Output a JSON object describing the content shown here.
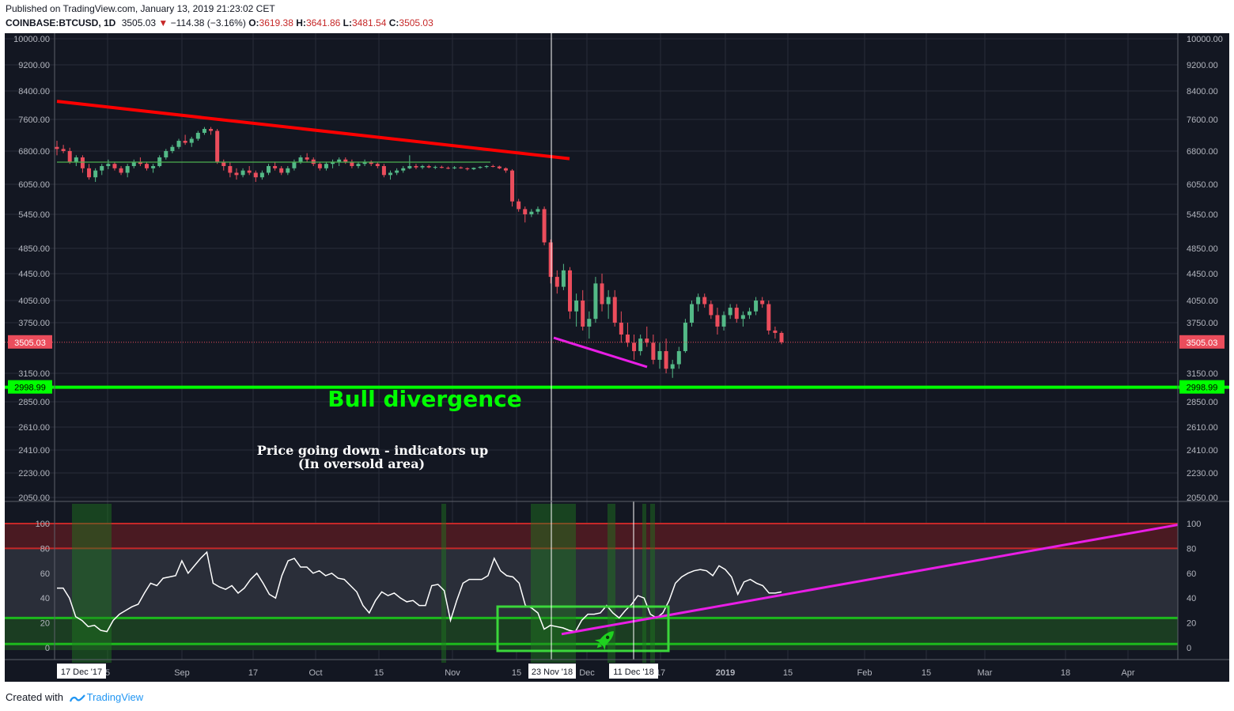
{
  "header": {
    "published": "Published on TradingView.com, January 13, 2019 21:23:02 CET",
    "symbol": "COINBASE:BTCUSD, 1D",
    "last": "3505.03",
    "arrow": "▼",
    "change": "−114.38 (−3.16%)",
    "o_label": "O:",
    "o": "3619.38",
    "h_label": "H:",
    "h": "3641.86",
    "l_label": "L:",
    "l": "3481.54",
    "c_label": "C:",
    "c": "3505.03"
  },
  "footer": {
    "created_with": "Created with",
    "brand": "TradingView"
  },
  "colors": {
    "background": "#131722",
    "up": "#53b987",
    "down": "#eb4d5c",
    "trend_red": "#ff0000",
    "support_green": "#00ff00",
    "divergence_magenta": "#e91ee6",
    "rsi_line": "#ffffff",
    "rsi_band": "#2a2e39",
    "overbought": "#b71c1c",
    "oversold": "#1b5e20"
  },
  "annotations": {
    "bull_divergence": "Bull divergence",
    "note_line1": "Price going down - indicators up",
    "note_line2": "(In oversold area)",
    "rocket_icon": "rocket-icon"
  },
  "price_axis": {
    "ticks": [
      "10000.00",
      "9200.00",
      "8400.00",
      "7600.00",
      "6800.00",
      "6050.00",
      "5450.00",
      "4850.00",
      "4450.00",
      "4050.00",
      "3750.00",
      "3150.00",
      "2850.00",
      "2610.00",
      "2410.00",
      "2230.00",
      "2050.00"
    ],
    "last_label": "3505.03",
    "support_label": "2998.99"
  },
  "rsi_axis": {
    "ticks": [
      "100",
      "80",
      "60",
      "40",
      "20",
      "0"
    ]
  },
  "time_axis": {
    "ticks": [
      "5",
      "Sep",
      "17",
      "Oct",
      "15",
      "Nov",
      "15",
      "Dec",
      "17",
      "2019",
      "15",
      "Feb",
      "15",
      "Mar",
      "18",
      "Apr"
    ],
    "cursor_dates": [
      "17 Dec '17",
      "23 Nov '18",
      "11 Dec '18"
    ]
  },
  "chart_data": [
    {
      "type": "candlestick",
      "title": "COINBASE:BTCUSD, 1D",
      "ylim": [
        1950,
        10500
      ],
      "y_scale": "log",
      "last_price": 3505.03,
      "support_level": 2998.99,
      "series": [
        {
          "name": "BTCUSD",
          "ohlc": [
            [
              6900,
              7050,
              6700,
              6850
            ],
            [
              6850,
              6950,
              6750,
              6800
            ],
            [
              6800,
              6880,
              6500,
              6550
            ],
            [
              6550,
              6700,
              6450,
              6650
            ],
            [
              6650,
              6700,
              6300,
              6400
            ],
            [
              6400,
              6500,
              6150,
              6200
            ],
            [
              6200,
              6400,
              6100,
              6350
            ],
            [
              6350,
              6500,
              6250,
              6450
            ],
            [
              6450,
              6600,
              6380,
              6500
            ],
            [
              6500,
              6550,
              6350,
              6400
            ],
            [
              6400,
              6450,
              6250,
              6300
            ],
            [
              6300,
              6500,
              6200,
              6450
            ],
            [
              6450,
              6600,
              6400,
              6550
            ],
            [
              6550,
              6650,
              6450,
              6500
            ],
            [
              6500,
              6550,
              6350,
              6400
            ],
            [
              6400,
              6500,
              6300,
              6450
            ],
            [
              6450,
              6700,
              6420,
              6650
            ],
            [
              6650,
              6850,
              6600,
              6800
            ],
            [
              6800,
              6950,
              6750,
              6900
            ],
            [
              6900,
              7100,
              6850,
              7050
            ],
            [
              7050,
              7200,
              6950,
              7000
            ],
            [
              7000,
              7150,
              6900,
              7100
            ],
            [
              7100,
              7300,
              7050,
              7250
            ],
            [
              7250,
              7400,
              7200,
              7350
            ],
            [
              7350,
              7400,
              7200,
              7300
            ],
            [
              7300,
              7350,
              6500,
              6550
            ],
            [
              6550,
              6600,
              6350,
              6450
            ],
            [
              6450,
              6550,
              6200,
              6300
            ],
            [
              6300,
              6400,
              6150,
              6250
            ],
            [
              6250,
              6400,
              6200,
              6350
            ],
            [
              6350,
              6450,
              6250,
              6300
            ],
            [
              6300,
              6350,
              6100,
              6200
            ],
            [
              6200,
              6350,
              6150,
              6300
            ],
            [
              6300,
              6500,
              6250,
              6450
            ],
            [
              6450,
              6550,
              6350,
              6400
            ],
            [
              6400,
              6450,
              6250,
              6300
            ],
            [
              6300,
              6450,
              6250,
              6400
            ],
            [
              6400,
              6600,
              6350,
              6550
            ],
            [
              6550,
              6700,
              6500,
              6650
            ],
            [
              6650,
              6750,
              6550,
              6600
            ],
            [
              6600,
              6650,
              6450,
              6500
            ],
            [
              6500,
              6550,
              6350,
              6400
            ],
            [
              6400,
              6550,
              6350,
              6500
            ],
            [
              6500,
              6600,
              6400,
              6550
            ],
            [
              6550,
              6650,
              6450,
              6600
            ],
            [
              6600,
              6650,
              6500,
              6550
            ],
            [
              6550,
              6600,
              6400,
              6450
            ],
            [
              6450,
              6550,
              6400,
              6500
            ],
            [
              6500,
              6600,
              6450,
              6550
            ],
            [
              6550,
              6580,
              6450,
              6500
            ],
            [
              6500,
              6550,
              6400,
              6450
            ],
            [
              6450,
              6500,
              6200,
              6250
            ],
            [
              6250,
              6350,
              6150,
              6300
            ],
            [
              6300,
              6400,
              6250,
              6350
            ],
            [
              6350,
              6450,
              6300,
              6400
            ],
            [
              6400,
              6700,
              6380,
              6450
            ],
            [
              6450,
              6500,
              6380,
              6420
            ],
            [
              6420,
              6480,
              6380,
              6450
            ],
            [
              6450,
              6480,
              6400,
              6420
            ],
            [
              6420,
              6460,
              6380,
              6430
            ],
            [
              6430,
              6460,
              6400,
              6410
            ],
            [
              6410,
              6440,
              6380,
              6400
            ],
            [
              6400,
              6450,
              6380,
              6420
            ],
            [
              6420,
              6440,
              6390,
              6400
            ],
            [
              6400,
              6420,
              6350,
              6380
            ],
            [
              6380,
              6420,
              6360,
              6410
            ],
            [
              6410,
              6450,
              6390,
              6430
            ],
            [
              6430,
              6470,
              6400,
              6450
            ],
            [
              6450,
              6480,
              6420,
              6440
            ],
            [
              6440,
              6460,
              6380,
              6400
            ],
            [
              6400,
              6420,
              6300,
              6350
            ],
            [
              6350,
              6380,
              5600,
              5700
            ],
            [
              5700,
              5750,
              5500,
              5550
            ],
            [
              5550,
              5600,
              5300,
              5450
            ],
            [
              5450,
              5550,
              5400,
              5500
            ],
            [
              5500,
              5600,
              5450,
              5550
            ],
            [
              5550,
              5600,
              4900,
              4950
            ],
            [
              4950,
              5000,
              4300,
              4400
            ],
            [
              4400,
              4500,
              4150,
              4250
            ],
            [
              4250,
              4600,
              4200,
              4500
            ],
            [
              4500,
              4550,
              3800,
              3900
            ],
            [
              3900,
              4150,
              3700,
              4050
            ],
            [
              4050,
              4200,
              3650,
              3700
            ],
            [
              3700,
              3900,
              3550,
              3800
            ],
            [
              3800,
              4400,
              3750,
              4300
            ],
            [
              4300,
              4450,
              3900,
              4000
            ],
            [
              4000,
              4200,
              3800,
              4100
            ],
            [
              4100,
              4200,
              3700,
              3750
            ],
            [
              3750,
              3900,
              3500,
              3600
            ],
            [
              3600,
              3750,
              3450,
              3500
            ],
            [
              3500,
              3600,
              3300,
              3400
            ],
            [
              3400,
              3600,
              3350,
              3550
            ],
            [
              3550,
              3700,
              3450,
              3500
            ],
            [
              3500,
              3600,
              3250,
              3300
            ],
            [
              3300,
              3500,
              3200,
              3400
            ],
            [
              3400,
              3550,
              3150,
              3200
            ],
            [
              3200,
              3300,
              3100,
              3250
            ],
            [
              3250,
              3450,
              3200,
              3400
            ],
            [
              3400,
              3800,
              3380,
              3750
            ],
            [
              3750,
              4050,
              3700,
              4000
            ],
            [
              4000,
              4150,
              3900,
              4100
            ],
            [
              4100,
              4150,
              3950,
              4000
            ],
            [
              4000,
              4050,
              3800,
              3850
            ],
            [
              3850,
              3950,
              3600,
              3700
            ],
            [
              3700,
              3900,
              3650,
              3850
            ],
            [
              3850,
              4000,
              3800,
              3950
            ],
            [
              3950,
              4000,
              3750,
              3800
            ],
            [
              3800,
              3900,
              3700,
              3850
            ],
            [
              3850,
              3950,
              3800,
              3900
            ],
            [
              3900,
              4100,
              3850,
              4050
            ],
            [
              4050,
              4100,
              3950,
              4000
            ],
            [
              4000,
              4050,
              3600,
              3650
            ],
            [
              3650,
              3700,
              3550,
              3620
            ],
            [
              3620,
              3641.86,
              3481.54,
              3505.03
            ]
          ]
        }
      ]
    },
    {
      "type": "line",
      "title": "",
      "ylim": [
        0,
        100
      ],
      "overbought": [
        80,
        100
      ],
      "oversold": [
        0,
        24
      ],
      "series": [
        {
          "name": "",
          "values": [
            48,
            48,
            40,
            25,
            22,
            17,
            18,
            14,
            13,
            22,
            27,
            30,
            33,
            35,
            44,
            52,
            50,
            56,
            57,
            58,
            70,
            60,
            66,
            72,
            77,
            52,
            49,
            47,
            50,
            44,
            48,
            55,
            60,
            52,
            43,
            40,
            58,
            70,
            72,
            65,
            65,
            60,
            62,
            58,
            60,
            56,
            55,
            50,
            45,
            34,
            28,
            38,
            45,
            42,
            44,
            40,
            37,
            38,
            34,
            34,
            50,
            51,
            46,
            22,
            38,
            52,
            55,
            55,
            55,
            58,
            72,
            62,
            58,
            57,
            52,
            34,
            32,
            28,
            15,
            18,
            17,
            16,
            14,
            13,
            22,
            27,
            27,
            28,
            34,
            28,
            24,
            30,
            35,
            42,
            40,
            27,
            24,
            28,
            38,
            52,
            57,
            60,
            62,
            63,
            62,
            58,
            66,
            63,
            57,
            43,
            53,
            55,
            52,
            50,
            44,
            44,
            45
          ]
        }
      ]
    }
  ]
}
